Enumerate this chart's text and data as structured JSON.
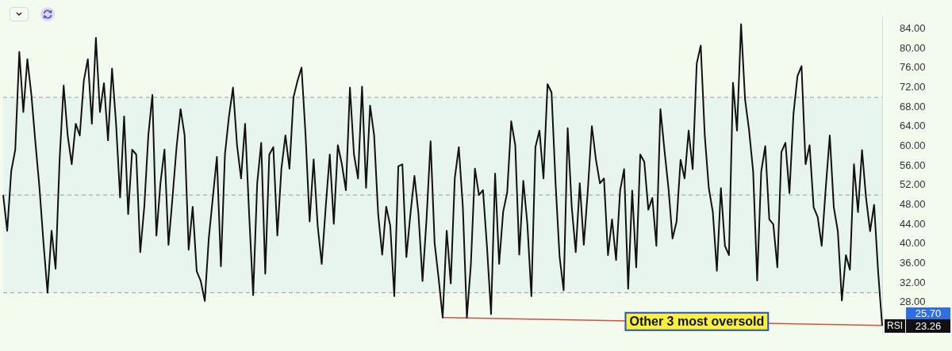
{
  "chart_data": {
    "type": "line",
    "categories": [
      null,
      null,
      null,
      null,
      null,
      null,
      null,
      null,
      null,
      null,
      null,
      null,
      null,
      null,
      null,
      null,
      null,
      null,
      null,
      null,
      null,
      null,
      null,
      null,
      null,
      null,
      null,
      null,
      null,
      null,
      null,
      null,
      null,
      null,
      null,
      null,
      null,
      null,
      null,
      null,
      null,
      null,
      null,
      null,
      null,
      null,
      null,
      null,
      null,
      null,
      null,
      null,
      null,
      null,
      null,
      null,
      null,
      null,
      null,
      null,
      null,
      null,
      null,
      null,
      null,
      null,
      null,
      null,
      null,
      null,
      null,
      null,
      null,
      null,
      null,
      null,
      null,
      null,
      null,
      null,
      null,
      null,
      null,
      null,
      null,
      null,
      null,
      null,
      null,
      null,
      null,
      null,
      null,
      null,
      null,
      null,
      null,
      null,
      null,
      null,
      null,
      null,
      null,
      null,
      null,
      null,
      null,
      null,
      null,
      null,
      null,
      null,
      null,
      null,
      null,
      null,
      null,
      null,
      null,
      null,
      null,
      null,
      null,
      null,
      null,
      null,
      null,
      null,
      null,
      null,
      null,
      null,
      null,
      null,
      null,
      null,
      null,
      null,
      null,
      null,
      null,
      null,
      null,
      null,
      null,
      null,
      null,
      null,
      null,
      null,
      null,
      null,
      null,
      null,
      null,
      null,
      null,
      null,
      null,
      null,
      null,
      null,
      null,
      null,
      null,
      null,
      null,
      null,
      null,
      null,
      null,
      null,
      null,
      null,
      null,
      null,
      null,
      null,
      null,
      null,
      null,
      null,
      null,
      null,
      null,
      null,
      null,
      null,
      null,
      null,
      null,
      null,
      null,
      null,
      null,
      null,
      null,
      null,
      null,
      null,
      null,
      null,
      null,
      null,
      null,
      null,
      null,
      null,
      null,
      null,
      null,
      null,
      null,
      null,
      null,
      null,
      null,
      null,
      null
    ],
    "series": [
      {
        "name": "RSI",
        "color": "#111111",
        "values": [
          50,
          42.7,
          54.9,
          59.3,
          79.3,
          67,
          77.8,
          70.5,
          60.7,
          51.5,
          40.2,
          30,
          42.7,
          34.9,
          57.3,
          72.4,
          62.2,
          56.3,
          64.6,
          62.2,
          73.4,
          77.8,
          64.6,
          82.2,
          67,
          72.9,
          61.2,
          75.9,
          64.6,
          49.5,
          66.1,
          46.1,
          59.3,
          58.3,
          38.3,
          47.6,
          62.2,
          70.5,
          41.7,
          52.4,
          59.3,
          39.8,
          49.5,
          59.8,
          67.6,
          62.2,
          38.8,
          47.6,
          34.4,
          32.4,
          28.3,
          41.2,
          49.5,
          57.8,
          35.4,
          58.3,
          66.1,
          72,
          60.2,
          53.4,
          64.6,
          46.1,
          29.5,
          52.4,
          60.7,
          33.9,
          58.3,
          59.8,
          41.7,
          55.4,
          62.2,
          55.4,
          70,
          73.4,
          76.1,
          62.2,
          44.6,
          57.3,
          43.7,
          35.9,
          47.6,
          58.3,
          44.1,
          60.2,
          56.3,
          51,
          72,
          58.3,
          53.4,
          72.2,
          51.5,
          68.3,
          62.2,
          46.1,
          37.8,
          47.6,
          43.7,
          29.3,
          55.9,
          56.3,
          37.3,
          46.1,
          53.9,
          46.1,
          32.4,
          45.1,
          61,
          40.2,
          32.9,
          24.9,
          42.7,
          31.9,
          53.4,
          59.8,
          47.6,
          24.9,
          35.9,
          55.4,
          50,
          51,
          39.3,
          25.6,
          54.4,
          35.9,
          46.6,
          50.5,
          65.1,
          60.2,
          37.8,
          52.9,
          44.1,
          29.3,
          59.8,
          63.2,
          53.4,
          72.7,
          71,
          52.4,
          37.3,
          30.5,
          63.7,
          47.6,
          38.3,
          52.4,
          39.8,
          51,
          64.1,
          57.3,
          52.4,
          53.4,
          37.7,
          45,
          36.7,
          50.9,
          55.3,
          30.8,
          50.9,
          35.2,
          58.3,
          56.8,
          47,
          49.4,
          39.6,
          67.6,
          59.2,
          51.4,
          41.1,
          44.5,
          57.2,
          53.4,
          63.2,
          55.3,
          76.9,
          80.6,
          62.2,
          51.4,
          46.5,
          34.5,
          51.4,
          39.6,
          37.7,
          73,
          63.2,
          85,
          69.5,
          63.2,
          54.8,
          32.5,
          54.8,
          60,
          45,
          44,
          35.2,
          58.8,
          60.7,
          50.4,
          66.6,
          74.4,
          76.4,
          56.3,
          60.2,
          47.5,
          45.5,
          39.6,
          51.4,
          62.2,
          47.5,
          42.6,
          28.4,
          37.7,
          34.7,
          56.3,
          46.5,
          59.2,
          49.4,
          42.6,
          48,
          34.2,
          23.26
        ]
      },
      {
        "color": "#d6503c",
        "values": [
          null,
          null,
          null,
          null,
          null,
          null,
          null,
          null,
          null,
          null,
          null,
          null,
          null,
          null,
          null,
          null,
          null,
          null,
          null,
          null,
          null,
          null,
          null,
          null,
          null,
          null,
          null,
          null,
          null,
          null,
          null,
          null,
          null,
          null,
          null,
          null,
          null,
          null,
          null,
          null,
          null,
          null,
          null,
          null,
          null,
          null,
          null,
          null,
          null,
          null,
          null,
          null,
          null,
          null,
          null,
          null,
          null,
          null,
          null,
          null,
          null,
          null,
          null,
          null,
          null,
          null,
          null,
          null,
          null,
          null,
          null,
          null,
          null,
          null,
          null,
          null,
          null,
          null,
          null,
          null,
          null,
          null,
          null,
          null,
          null,
          null,
          null,
          null,
          null,
          null,
          null,
          null,
          null,
          null,
          null,
          null,
          null,
          null,
          null,
          null,
          null,
          null,
          null,
          null,
          null,
          null,
          null,
          null,
          null,
          24.9,
          null,
          null,
          null,
          null,
          null,
          null,
          null,
          null,
          null,
          null,
          null,
          null,
          null,
          null,
          null,
          null,
          null,
          null,
          null,
          null,
          null,
          null,
          null,
          null,
          null,
          null,
          null,
          null,
          null,
          null,
          null,
          null,
          null,
          null,
          null,
          null,
          null,
          null,
          null,
          null,
          null,
          null,
          null,
          null,
          null,
          null,
          null,
          null,
          null,
          null,
          null,
          null,
          null,
          null,
          null,
          null,
          null,
          null,
          null,
          null,
          null,
          null,
          null,
          null,
          null,
          null,
          null,
          null,
          null,
          null,
          null,
          null,
          null,
          null,
          null,
          null,
          null,
          null,
          null,
          null,
          null,
          null,
          null,
          null,
          null,
          null,
          null,
          null,
          null,
          null,
          null,
          null,
          null,
          null,
          null,
          null,
          null,
          null,
          null,
          null,
          null,
          null,
          null,
          null,
          null,
          null,
          null,
          null,
          23.3
        ]
      }
    ],
    "ylim": [
      21.6,
      86.4
    ],
    "yticks": [
      {
        "value": 28,
        "label": "28.00"
      },
      {
        "value": 32,
        "label": "32.00"
      },
      {
        "value": 36,
        "label": "36.00"
      },
      {
        "value": 40,
        "label": "40.00"
      },
      {
        "value": 44,
        "label": "44.00"
      },
      {
        "value": 48,
        "label": "48.00"
      },
      {
        "value": 52,
        "label": "52.00"
      },
      {
        "value": 56,
        "label": "56.00"
      },
      {
        "value": 60,
        "label": "60.00"
      },
      {
        "value": 64,
        "label": "64.00"
      },
      {
        "value": 68,
        "label": "68.00"
      },
      {
        "value": 72,
        "label": "72.00"
      },
      {
        "value": 76,
        "label": "76.00"
      },
      {
        "value": 80,
        "label": "80.00"
      },
      {
        "value": 84,
        "label": "84.00"
      }
    ],
    "tick_labels": "y",
    "bands": [
      {
        "axis": "y",
        "from": 30,
        "to": 70,
        "color": "#e7f5ee"
      }
    ],
    "ref_lines": [
      {
        "axis": "y",
        "value": 70,
        "color": "#9aa09c",
        "line_style": "dashed"
      },
      {
        "axis": "y",
        "value": 50,
        "color": "#9aa09c",
        "line_style": "dashed"
      },
      {
        "axis": "y",
        "value": 30,
        "color": "#9aa09c",
        "line_style": "dashed"
      }
    ],
    "annotations": [
      "Other 3 most oversold",
      "25.70",
      "23.26"
    ]
  }
}
